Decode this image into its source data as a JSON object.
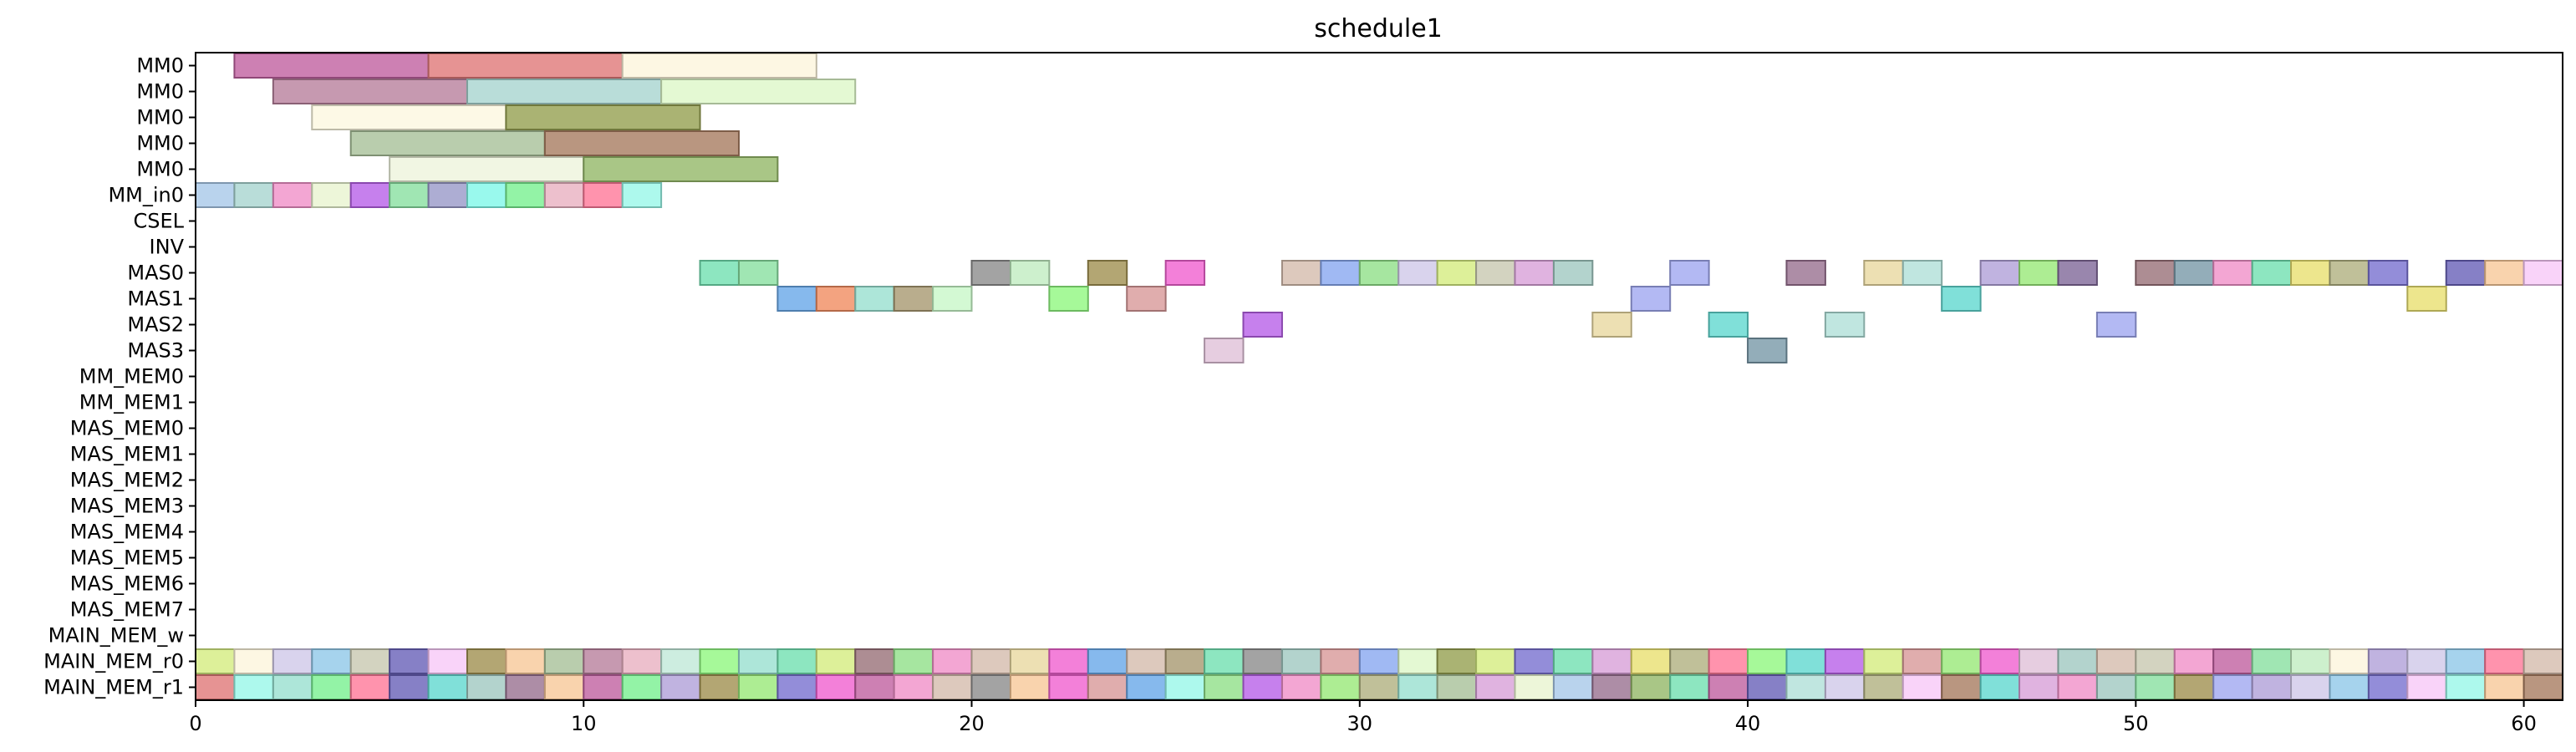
{
  "chart_data": {
    "type": "gantt",
    "title": "schedule1",
    "xlabel": "",
    "ylabel": "",
    "xlim": [
      0,
      61
    ],
    "xticks": [
      0,
      10,
      20,
      30,
      40,
      50,
      60
    ],
    "rows": [
      "MM0",
      "MM0",
      "MM0",
      "MM0",
      "MM0",
      "MM_in0",
      "CSEL",
      "INV",
      "MAS0",
      "MAS1",
      "MAS2",
      "MAS3",
      "MM_MEM0",
      "MM_MEM1",
      "MAS_MEM0",
      "MAS_MEM1",
      "MAS_MEM2",
      "MAS_MEM3",
      "MAS_MEM4",
      "MAS_MEM5",
      "MAS_MEM6",
      "MAS_MEM7",
      "MAIN_MEM_w",
      "MAIN_MEM_r0",
      "MAIN_MEM_r1"
    ],
    "palette": [
      "#c060a0",
      "#e07878",
      "#fdf5dc",
      "#b8809c",
      "#a8d4d0",
      "#ddf8c8",
      "#fcf8e0",
      "#95a050",
      "#a8c098",
      "#a87c60",
      "#eef4dc",
      "#94b868",
      "#a8c8e8",
      "#f090c8",
      "#e8f4d0",
      "#b860e8",
      "#88e0a0",
      "#9898c8",
      "#80f8e8",
      "#78f090",
      "#e8b0c0",
      "#ff7898",
      "#98f8e8",
      "#70e0b0",
      "#8c8c8c",
      "#c0ecc0",
      "#a09050",
      "#f060d0",
      "#d4bcac",
      "#88a8f0",
      "#90e088",
      "#d0c8e8",
      "#d4ec80",
      "#c8c8b0",
      "#d8a0d8",
      "#a0c8c0",
      "#a0a8f0",
      "#987090",
      "#e8d8a0",
      "#b0e0d8",
      "#b0a0d8",
      "#98e878",
      "#806898",
      "#987078",
      "#7898a8",
      "#e8e070",
      "#b0b080",
      "#7870d0",
      "#6860b8",
      "#f8c898",
      "#f8c8f8",
      "#68a8e8",
      "#f08c60",
      "#98e0d0",
      "#a89870",
      "#c8f8c8",
      "#90f880",
      "#d89898",
      "#60d8d0",
      "#e0c0d8",
      "#90c8e8",
      "#c0e8d8"
    ],
    "bars": [
      {
        "row": 0,
        "start": 1,
        "end": 6,
        "c": 0
      },
      {
        "row": 0,
        "start": 6,
        "end": 11,
        "c": 1
      },
      {
        "row": 0,
        "start": 11,
        "end": 16,
        "c": 2
      },
      {
        "row": 1,
        "start": 2,
        "end": 7,
        "c": 3
      },
      {
        "row": 1,
        "start": 7,
        "end": 12,
        "c": 4
      },
      {
        "row": 1,
        "start": 12,
        "end": 17,
        "c": 5
      },
      {
        "row": 2,
        "start": 3,
        "end": 8,
        "c": 6
      },
      {
        "row": 2,
        "start": 8,
        "end": 13,
        "c": 7
      },
      {
        "row": 3,
        "start": 4,
        "end": 9,
        "c": 8
      },
      {
        "row": 3,
        "start": 9,
        "end": 14,
        "c": 9
      },
      {
        "row": 4,
        "start": 5,
        "end": 10,
        "c": 10
      },
      {
        "row": 4,
        "start": 10,
        "end": 15,
        "c": 11
      },
      {
        "row": 5,
        "start": 0,
        "end": 1,
        "c": 12
      },
      {
        "row": 5,
        "start": 1,
        "end": 2,
        "c": 4
      },
      {
        "row": 5,
        "start": 2,
        "end": 3,
        "c": 13
      },
      {
        "row": 5,
        "start": 3,
        "end": 4,
        "c": 14
      },
      {
        "row": 5,
        "start": 4,
        "end": 5,
        "c": 15
      },
      {
        "row": 5,
        "start": 5,
        "end": 6,
        "c": 16
      },
      {
        "row": 5,
        "start": 6,
        "end": 7,
        "c": 17
      },
      {
        "row": 5,
        "start": 7,
        "end": 8,
        "c": 18
      },
      {
        "row": 5,
        "start": 8,
        "end": 9,
        "c": 19
      },
      {
        "row": 5,
        "start": 9,
        "end": 10,
        "c": 20
      },
      {
        "row": 5,
        "start": 10,
        "end": 11,
        "c": 21
      },
      {
        "row": 5,
        "start": 11,
        "end": 12,
        "c": 22
      },
      {
        "row": 8,
        "start": 13,
        "end": 14,
        "c": 23
      },
      {
        "row": 8,
        "start": 14,
        "end": 15,
        "c": 16
      },
      {
        "row": 8,
        "start": 20,
        "end": 21,
        "c": 24
      },
      {
        "row": 8,
        "start": 21,
        "end": 22,
        "c": 25
      },
      {
        "row": 8,
        "start": 23,
        "end": 24,
        "c": 26
      },
      {
        "row": 8,
        "start": 25,
        "end": 26,
        "c": 27
      },
      {
        "row": 8,
        "start": 28,
        "end": 29,
        "c": 28
      },
      {
        "row": 8,
        "start": 29,
        "end": 30,
        "c": 29
      },
      {
        "row": 8,
        "start": 30,
        "end": 31,
        "c": 30
      },
      {
        "row": 8,
        "start": 31,
        "end": 32,
        "c": 31
      },
      {
        "row": 8,
        "start": 32,
        "end": 33,
        "c": 32
      },
      {
        "row": 8,
        "start": 33,
        "end": 34,
        "c": 33
      },
      {
        "row": 8,
        "start": 34,
        "end": 35,
        "c": 34
      },
      {
        "row": 8,
        "start": 35,
        "end": 36,
        "c": 35
      },
      {
        "row": 8,
        "start": 38,
        "end": 39,
        "c": 36
      },
      {
        "row": 8,
        "start": 41,
        "end": 42,
        "c": 37
      },
      {
        "row": 8,
        "start": 43,
        "end": 44,
        "c": 38
      },
      {
        "row": 8,
        "start": 44,
        "end": 45,
        "c": 39
      },
      {
        "row": 8,
        "start": 46,
        "end": 47,
        "c": 40
      },
      {
        "row": 8,
        "start": 47,
        "end": 48,
        "c": 41
      },
      {
        "row": 8,
        "start": 48,
        "end": 49,
        "c": 42
      },
      {
        "row": 8,
        "start": 50,
        "end": 51,
        "c": 43
      },
      {
        "row": 8,
        "start": 51,
        "end": 52,
        "c": 44
      },
      {
        "row": 8,
        "start": 52,
        "end": 53,
        "c": 13
      },
      {
        "row": 8,
        "start": 53,
        "end": 54,
        "c": 23
      },
      {
        "row": 8,
        "start": 54,
        "end": 55,
        "c": 45
      },
      {
        "row": 8,
        "start": 55,
        "end": 56,
        "c": 46
      },
      {
        "row": 8,
        "start": 56,
        "end": 57,
        "c": 47
      },
      {
        "row": 8,
        "start": 58,
        "end": 59,
        "c": 48
      },
      {
        "row": 8,
        "start": 59,
        "end": 60,
        "c": 49
      },
      {
        "row": 8,
        "start": 60,
        "end": 61,
        "c": 50
      },
      {
        "row": 9,
        "start": 15,
        "end": 16,
        "c": 51
      },
      {
        "row": 9,
        "start": 16,
        "end": 17,
        "c": 52
      },
      {
        "row": 9,
        "start": 17,
        "end": 18,
        "c": 53
      },
      {
        "row": 9,
        "start": 18,
        "end": 19,
        "c": 54
      },
      {
        "row": 9,
        "start": 19,
        "end": 20,
        "c": 55
      },
      {
        "row": 9,
        "start": 22,
        "end": 23,
        "c": 56
      },
      {
        "row": 9,
        "start": 24,
        "end": 25,
        "c": 57
      },
      {
        "row": 9,
        "start": 37,
        "end": 38,
        "c": 36
      },
      {
        "row": 9,
        "start": 45,
        "end": 46,
        "c": 58
      },
      {
        "row": 9,
        "start": 57,
        "end": 58,
        "c": 45
      },
      {
        "row": 10,
        "start": 27,
        "end": 28,
        "c": 15
      },
      {
        "row": 10,
        "start": 36,
        "end": 37,
        "c": 38
      },
      {
        "row": 10,
        "start": 39,
        "end": 40,
        "c": 58
      },
      {
        "row": 10,
        "start": 42,
        "end": 43,
        "c": 39
      },
      {
        "row": 10,
        "start": 49,
        "end": 50,
        "c": 36
      },
      {
        "row": 11,
        "start": 26,
        "end": 27,
        "c": 59
      },
      {
        "row": 11,
        "start": 40,
        "end": 41,
        "c": 44
      },
      {
        "row": 23,
        "start": 0,
        "end": 1,
        "c": 32
      },
      {
        "row": 23,
        "start": 1,
        "end": 2,
        "c": 2
      },
      {
        "row": 23,
        "start": 2,
        "end": 3,
        "c": 31
      },
      {
        "row": 23,
        "start": 3,
        "end": 4,
        "c": 60
      },
      {
        "row": 23,
        "start": 4,
        "end": 5,
        "c": 33
      },
      {
        "row": 23,
        "start": 5,
        "end": 6,
        "c": 48
      },
      {
        "row": 23,
        "start": 6,
        "end": 7,
        "c": 50
      },
      {
        "row": 23,
        "start": 7,
        "end": 8,
        "c": 26
      },
      {
        "row": 23,
        "start": 8,
        "end": 9,
        "c": 49
      },
      {
        "row": 23,
        "start": 9,
        "end": 10,
        "c": 8
      },
      {
        "row": 23,
        "start": 10,
        "end": 11,
        "c": 3
      },
      {
        "row": 23,
        "start": 11,
        "end": 12,
        "c": 20
      },
      {
        "row": 23,
        "start": 12,
        "end": 13,
        "c": 61
      },
      {
        "row": 23,
        "start": 13,
        "end": 14,
        "c": 56
      },
      {
        "row": 23,
        "start": 14,
        "end": 15,
        "c": 53
      },
      {
        "row": 23,
        "start": 15,
        "end": 16,
        "c": 23
      },
      {
        "row": 23,
        "start": 16,
        "end": 17,
        "c": 32
      },
      {
        "row": 23,
        "start": 17,
        "end": 18,
        "c": 43
      },
      {
        "row": 23,
        "start": 18,
        "end": 19,
        "c": 30
      },
      {
        "row": 23,
        "start": 19,
        "end": 20,
        "c": 13
      },
      {
        "row": 23,
        "start": 20,
        "end": 21,
        "c": 28
      },
      {
        "row": 23,
        "start": 21,
        "end": 22,
        "c": 38
      },
      {
        "row": 23,
        "start": 22,
        "end": 23,
        "c": 27
      },
      {
        "row": 23,
        "start": 23,
        "end": 24,
        "c": 51
      },
      {
        "row": 23,
        "start": 24,
        "end": 25,
        "c": 28
      },
      {
        "row": 23,
        "start": 25,
        "end": 26,
        "c": 54
      },
      {
        "row": 23,
        "start": 26,
        "end": 27,
        "c": 23
      },
      {
        "row": 23,
        "start": 27,
        "end": 28,
        "c": 24
      },
      {
        "row": 23,
        "start": 28,
        "end": 29,
        "c": 35
      },
      {
        "row": 23,
        "start": 29,
        "end": 30,
        "c": 57
      },
      {
        "row": 23,
        "start": 30,
        "end": 31,
        "c": 29
      },
      {
        "row": 23,
        "start": 31,
        "end": 32,
        "c": 5
      },
      {
        "row": 23,
        "start": 32,
        "end": 33,
        "c": 7
      },
      {
        "row": 23,
        "start": 33,
        "end": 34,
        "c": 32
      },
      {
        "row": 23,
        "start": 34,
        "end": 35,
        "c": 47
      },
      {
        "row": 23,
        "start": 35,
        "end": 36,
        "c": 23
      },
      {
        "row": 23,
        "start": 36,
        "end": 37,
        "c": 34
      },
      {
        "row": 23,
        "start": 37,
        "end": 38,
        "c": 45
      },
      {
        "row": 23,
        "start": 38,
        "end": 39,
        "c": 46
      },
      {
        "row": 23,
        "start": 39,
        "end": 40,
        "c": 21
      },
      {
        "row": 23,
        "start": 40,
        "end": 41,
        "c": 56
      },
      {
        "row": 23,
        "start": 41,
        "end": 42,
        "c": 58
      },
      {
        "row": 23,
        "start": 42,
        "end": 43,
        "c": 15
      },
      {
        "row": 23,
        "start": 43,
        "end": 44,
        "c": 32
      },
      {
        "row": 23,
        "start": 44,
        "end": 45,
        "c": 57
      },
      {
        "row": 23,
        "start": 45,
        "end": 46,
        "c": 41
      },
      {
        "row": 23,
        "start": 46,
        "end": 47,
        "c": 27
      },
      {
        "row": 23,
        "start": 47,
        "end": 48,
        "c": 59
      },
      {
        "row": 23,
        "start": 48,
        "end": 49,
        "c": 35
      },
      {
        "row": 23,
        "start": 49,
        "end": 50,
        "c": 28
      },
      {
        "row": 23,
        "start": 50,
        "end": 51,
        "c": 33
      },
      {
        "row": 23,
        "start": 51,
        "end": 52,
        "c": 13
      },
      {
        "row": 23,
        "start": 52,
        "end": 53,
        "c": 0
      },
      {
        "row": 23,
        "start": 53,
        "end": 54,
        "c": 16
      },
      {
        "row": 23,
        "start": 54,
        "end": 55,
        "c": 25
      },
      {
        "row": 23,
        "start": 55,
        "end": 56,
        "c": 2
      },
      {
        "row": 23,
        "start": 56,
        "end": 57,
        "c": 40
      },
      {
        "row": 23,
        "start": 57,
        "end": 58,
        "c": 31
      },
      {
        "row": 23,
        "start": 58,
        "end": 59,
        "c": 60
      },
      {
        "row": 23,
        "start": 59,
        "end": 60,
        "c": 21
      },
      {
        "row": 23,
        "start": 60,
        "end": 61,
        "c": 28
      },
      {
        "row": 24,
        "start": 0,
        "end": 1,
        "c": 1
      },
      {
        "row": 24,
        "start": 1,
        "end": 2,
        "c": 22
      },
      {
        "row": 24,
        "start": 2,
        "end": 3,
        "c": 53
      },
      {
        "row": 24,
        "start": 3,
        "end": 4,
        "c": 19
      },
      {
        "row": 24,
        "start": 4,
        "end": 5,
        "c": 21
      },
      {
        "row": 24,
        "start": 5,
        "end": 6,
        "c": 48
      },
      {
        "row": 24,
        "start": 6,
        "end": 7,
        "c": 58
      },
      {
        "row": 24,
        "start": 7,
        "end": 8,
        "c": 35
      },
      {
        "row": 24,
        "start": 8,
        "end": 9,
        "c": 37
      },
      {
        "row": 24,
        "start": 9,
        "end": 10,
        "c": 49
      },
      {
        "row": 24,
        "start": 10,
        "end": 11,
        "c": 0
      },
      {
        "row": 24,
        "start": 11,
        "end": 12,
        "c": 19
      },
      {
        "row": 24,
        "start": 12,
        "end": 13,
        "c": 40
      },
      {
        "row": 24,
        "start": 13,
        "end": 14,
        "c": 26
      },
      {
        "row": 24,
        "start": 14,
        "end": 15,
        "c": 41
      },
      {
        "row": 24,
        "start": 15,
        "end": 16,
        "c": 47
      },
      {
        "row": 24,
        "start": 16,
        "end": 17,
        "c": 27
      },
      {
        "row": 24,
        "start": 17,
        "end": 18,
        "c": 0
      },
      {
        "row": 24,
        "start": 18,
        "end": 19,
        "c": 13
      },
      {
        "row": 24,
        "start": 19,
        "end": 20,
        "c": 28
      },
      {
        "row": 24,
        "start": 20,
        "end": 21,
        "c": 24
      },
      {
        "row": 24,
        "start": 21,
        "end": 22,
        "c": 49
      },
      {
        "row": 24,
        "start": 22,
        "end": 23,
        "c": 27
      },
      {
        "row": 24,
        "start": 23,
        "end": 24,
        "c": 57
      },
      {
        "row": 24,
        "start": 24,
        "end": 25,
        "c": 51
      },
      {
        "row": 24,
        "start": 25,
        "end": 26,
        "c": 22
      },
      {
        "row": 24,
        "start": 26,
        "end": 27,
        "c": 30
      },
      {
        "row": 24,
        "start": 27,
        "end": 28,
        "c": 15
      },
      {
        "row": 24,
        "start": 28,
        "end": 29,
        "c": 13
      },
      {
        "row": 24,
        "start": 29,
        "end": 30,
        "c": 41
      },
      {
        "row": 24,
        "start": 30,
        "end": 31,
        "c": 46
      },
      {
        "row": 24,
        "start": 31,
        "end": 32,
        "c": 53
      },
      {
        "row": 24,
        "start": 32,
        "end": 33,
        "c": 8
      },
      {
        "row": 24,
        "start": 33,
        "end": 34,
        "c": 34
      },
      {
        "row": 24,
        "start": 34,
        "end": 35,
        "c": 14
      },
      {
        "row": 24,
        "start": 35,
        "end": 36,
        "c": 12
      },
      {
        "row": 24,
        "start": 36,
        "end": 37,
        "c": 37
      },
      {
        "row": 24,
        "start": 37,
        "end": 38,
        "c": 11
      },
      {
        "row": 24,
        "start": 38,
        "end": 39,
        "c": 23
      },
      {
        "row": 24,
        "start": 39,
        "end": 40,
        "c": 0
      },
      {
        "row": 24,
        "start": 40,
        "end": 41,
        "c": 48
      },
      {
        "row": 24,
        "start": 41,
        "end": 42,
        "c": 39
      },
      {
        "row": 24,
        "start": 42,
        "end": 43,
        "c": 31
      },
      {
        "row": 24,
        "start": 43,
        "end": 44,
        "c": 46
      },
      {
        "row": 24,
        "start": 44,
        "end": 45,
        "c": 50
      },
      {
        "row": 24,
        "start": 45,
        "end": 46,
        "c": 9
      },
      {
        "row": 24,
        "start": 46,
        "end": 47,
        "c": 58
      },
      {
        "row": 24,
        "start": 47,
        "end": 48,
        "c": 34
      },
      {
        "row": 24,
        "start": 48,
        "end": 49,
        "c": 13
      },
      {
        "row": 24,
        "start": 49,
        "end": 50,
        "c": 35
      },
      {
        "row": 24,
        "start": 50,
        "end": 51,
        "c": 16
      },
      {
        "row": 24,
        "start": 51,
        "end": 52,
        "c": 26
      },
      {
        "row": 24,
        "start": 52,
        "end": 53,
        "c": 36
      },
      {
        "row": 24,
        "start": 53,
        "end": 54,
        "c": 40
      },
      {
        "row": 24,
        "start": 54,
        "end": 55,
        "c": 31
      },
      {
        "row": 24,
        "start": 55,
        "end": 56,
        "c": 60
      },
      {
        "row": 24,
        "start": 56,
        "end": 57,
        "c": 47
      },
      {
        "row": 24,
        "start": 57,
        "end": 58,
        "c": 50
      },
      {
        "row": 24,
        "start": 58,
        "end": 59,
        "c": 22
      },
      {
        "row": 24,
        "start": 59,
        "end": 60,
        "c": 49
      },
      {
        "row": 24,
        "start": 60,
        "end": 61,
        "c": 9
      }
    ]
  }
}
